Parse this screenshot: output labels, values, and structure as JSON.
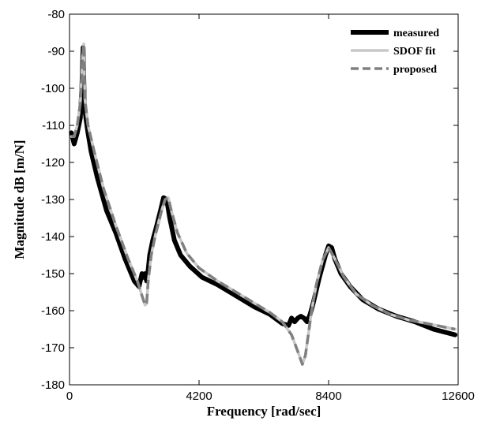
{
  "chart_data": {
    "type": "line",
    "title": "",
    "xlabel": "Frequency [rad/sec]",
    "ylabel": "Magnitude dB [m/N]",
    "xlim": [
      0,
      12600
    ],
    "ylim": [
      -180,
      -80
    ],
    "xticks": [
      0,
      4200,
      8400,
      12600
    ],
    "yticks": [
      -80,
      -90,
      -100,
      -110,
      -120,
      -130,
      -140,
      -150,
      -160,
      -170,
      -180
    ],
    "grid": false,
    "legend_position": "top-right",
    "series": [
      {
        "name": "measured",
        "color": "#000000",
        "style": "solid",
        "x": [
          60,
          150,
          250,
          350,
          400,
          440,
          480,
          530,
          600,
          700,
          900,
          1200,
          1500,
          1800,
          2100,
          2250,
          2350,
          2400,
          2450,
          2500,
          2550,
          2600,
          2700,
          2800,
          2950,
          3050,
          3150,
          3250,
          3400,
          3600,
          3900,
          4300,
          4800,
          5400,
          6000,
          6500,
          6900,
          7100,
          7200,
          7300,
          7400,
          7500,
          7600,
          7700,
          7800,
          7900,
          8100,
          8300,
          8400,
          8500,
          8600,
          8800,
          9100,
          9500,
          10000,
          10600,
          11200,
          11800,
          12500
        ],
        "y": [
          -112,
          -115,
          -112,
          -108,
          -100,
          -89,
          -104,
          -108,
          -112,
          -117,
          -124,
          -133,
          -139,
          -146,
          -152,
          -153.5,
          -150,
          -151,
          -150,
          -152,
          -149,
          -145,
          -141,
          -138,
          -133,
          -129.5,
          -130,
          -135,
          -141,
          -145,
          -148,
          -151,
          -153,
          -156,
          -159,
          -161,
          -163.5,
          -164,
          -162,
          -163,
          -162,
          -161.5,
          -162,
          -163,
          -161,
          -158,
          -151,
          -145,
          -142.5,
          -143,
          -146,
          -150,
          -153.5,
          -157,
          -159.5,
          -161.5,
          -163,
          -165,
          -166.5
        ]
      },
      {
        "name": "SDOF fit",
        "color": "#c8c8c8",
        "style": "solid",
        "x": [
          60,
          150,
          250,
          350,
          420,
          460,
          500,
          600,
          800,
          1100,
          1500,
          1900,
          2200,
          2350,
          2450,
          2500,
          2550,
          2650,
          2800,
          2950,
          3100,
          3200,
          3300,
          3500,
          3800,
          4200,
          4800,
          5400,
          6000,
          6500,
          6900,
          7200,
          7400,
          7550,
          7650,
          7750,
          7850,
          8000,
          8200,
          8400,
          8600,
          8900,
          9300,
          9800,
          10400,
          11000,
          11600,
          12500
        ],
        "y": [
          -113,
          -113,
          -110,
          -104,
          -92,
          -88,
          -103,
          -110,
          -117,
          -127,
          -137,
          -146,
          -152,
          -156,
          -158.5,
          -158,
          -152,
          -145,
          -139,
          -134,
          -130,
          -129.5,
          -133,
          -139,
          -144.5,
          -148.5,
          -152,
          -155,
          -158,
          -160.5,
          -163,
          -166.5,
          -171,
          -174.5,
          -172,
          -166,
          -160,
          -153,
          -146.5,
          -143,
          -146,
          -151,
          -155.5,
          -158.5,
          -161,
          -162.5,
          -163.5,
          -165
        ]
      },
      {
        "name": "proposed",
        "color": "#808080",
        "style": "dashed",
        "x": [
          60,
          150,
          250,
          350,
          420,
          460,
          500,
          600,
          800,
          1100,
          1500,
          1900,
          2200,
          2350,
          2450,
          2500,
          2550,
          2650,
          2800,
          2950,
          3100,
          3200,
          3300,
          3500,
          3800,
          4200,
          4800,
          5400,
          6000,
          6500,
          6900,
          7200,
          7400,
          7550,
          7650,
          7750,
          7850,
          8000,
          8200,
          8400,
          8600,
          8900,
          9300,
          9800,
          10400,
          11000,
          11600,
          12500
        ],
        "y": [
          -113,
          -113,
          -110,
          -104,
          -92,
          -88,
          -103,
          -110,
          -117,
          -127,
          -137,
          -146,
          -152,
          -156,
          -158.5,
          -158,
          -152,
          -145,
          -139,
          -134,
          -130,
          -129.5,
          -133,
          -139,
          -144.5,
          -148.5,
          -152,
          -155,
          -158,
          -160.5,
          -163,
          -166.5,
          -171,
          -174.5,
          -172,
          -166,
          -160,
          -153,
          -146.5,
          -143,
          -146,
          -151,
          -155.5,
          -158.5,
          -161,
          -162.5,
          -163.5,
          -165
        ]
      }
    ]
  }
}
